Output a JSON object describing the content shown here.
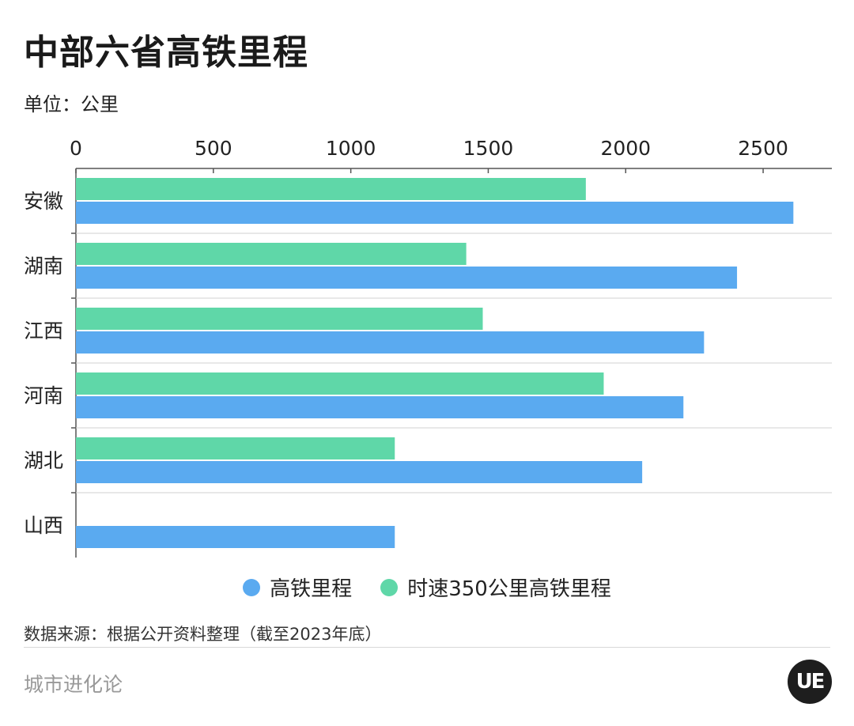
{
  "header": {
    "title": "中部六省高铁里程",
    "unit": "单位：公里"
  },
  "footer": {
    "source": "数据来源：根据公开资料整理（截至2023年底）",
    "brand": "城市进化论",
    "logo_text": "UE"
  },
  "colors": {
    "series_total": "#5aaaf0",
    "series_350": "#5fd7a8",
    "grid": "#d0d0d0",
    "axis": "#555555"
  },
  "chart_data": {
    "type": "bar",
    "orientation": "horizontal",
    "categories": [
      "安徽",
      "湖南",
      "江西",
      "河南",
      "湖北",
      "山西"
    ],
    "series": [
      {
        "name": "时速350公里高铁里程",
        "values": [
          1855,
          1420,
          1480,
          1920,
          1160,
          0
        ]
      },
      {
        "name": "高铁里程",
        "values": [
          2610,
          2405,
          2285,
          2210,
          2060,
          1160
        ]
      }
    ],
    "xlim": [
      0,
      2750
    ],
    "xticks": [
      "0",
      "500",
      "1000",
      "1500",
      "2000",
      "2500"
    ],
    "xtick_values": [
      0,
      500,
      1000,
      1500,
      2000,
      2500
    ],
    "axis_position": "top",
    "legend_position": "bottom",
    "legend": [
      "高铁里程",
      "时速350公里高铁里程"
    ],
    "grid": true
  }
}
